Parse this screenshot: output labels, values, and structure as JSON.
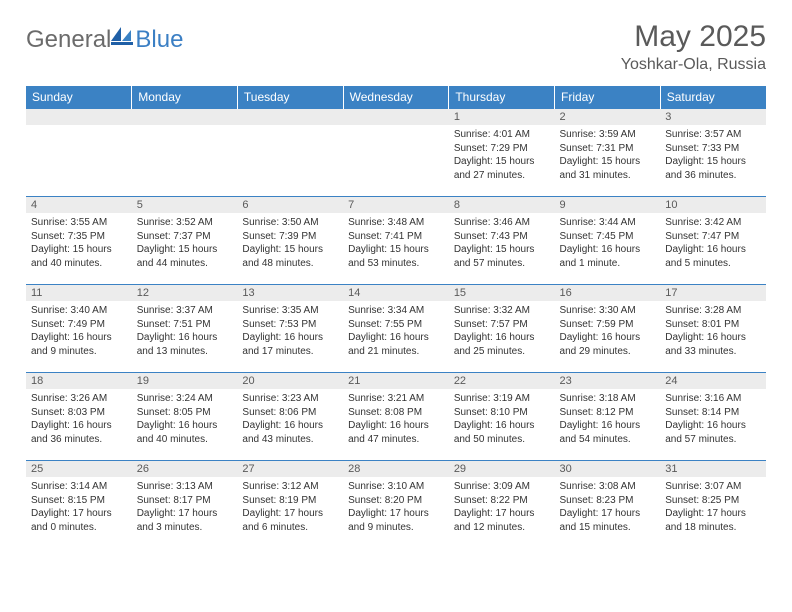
{
  "logo": {
    "text1": "General",
    "text2": "Blue"
  },
  "title": "May 2025",
  "location": "Yoshkar-Ola, Russia",
  "colors": {
    "header_bg": "#3b82c4",
    "header_text": "#ffffff",
    "daynum_bg": "#ececec",
    "border": "#3b82c4",
    "text": "#333333",
    "title_text": "#5a5a5a"
  },
  "weekdays": [
    "Sunday",
    "Monday",
    "Tuesday",
    "Wednesday",
    "Thursday",
    "Friday",
    "Saturday"
  ],
  "weeks": [
    [
      {
        "day": "",
        "lines": []
      },
      {
        "day": "",
        "lines": []
      },
      {
        "day": "",
        "lines": []
      },
      {
        "day": "",
        "lines": []
      },
      {
        "day": "1",
        "lines": [
          "Sunrise: 4:01 AM",
          "Sunset: 7:29 PM",
          "Daylight: 15 hours",
          "and 27 minutes."
        ]
      },
      {
        "day": "2",
        "lines": [
          "Sunrise: 3:59 AM",
          "Sunset: 7:31 PM",
          "Daylight: 15 hours",
          "and 31 minutes."
        ]
      },
      {
        "day": "3",
        "lines": [
          "Sunrise: 3:57 AM",
          "Sunset: 7:33 PM",
          "Daylight: 15 hours",
          "and 36 minutes."
        ]
      }
    ],
    [
      {
        "day": "4",
        "lines": [
          "Sunrise: 3:55 AM",
          "Sunset: 7:35 PM",
          "Daylight: 15 hours",
          "and 40 minutes."
        ]
      },
      {
        "day": "5",
        "lines": [
          "Sunrise: 3:52 AM",
          "Sunset: 7:37 PM",
          "Daylight: 15 hours",
          "and 44 minutes."
        ]
      },
      {
        "day": "6",
        "lines": [
          "Sunrise: 3:50 AM",
          "Sunset: 7:39 PM",
          "Daylight: 15 hours",
          "and 48 minutes."
        ]
      },
      {
        "day": "7",
        "lines": [
          "Sunrise: 3:48 AM",
          "Sunset: 7:41 PM",
          "Daylight: 15 hours",
          "and 53 minutes."
        ]
      },
      {
        "day": "8",
        "lines": [
          "Sunrise: 3:46 AM",
          "Sunset: 7:43 PM",
          "Daylight: 15 hours",
          "and 57 minutes."
        ]
      },
      {
        "day": "9",
        "lines": [
          "Sunrise: 3:44 AM",
          "Sunset: 7:45 PM",
          "Daylight: 16 hours",
          "and 1 minute."
        ]
      },
      {
        "day": "10",
        "lines": [
          "Sunrise: 3:42 AM",
          "Sunset: 7:47 PM",
          "Daylight: 16 hours",
          "and 5 minutes."
        ]
      }
    ],
    [
      {
        "day": "11",
        "lines": [
          "Sunrise: 3:40 AM",
          "Sunset: 7:49 PM",
          "Daylight: 16 hours",
          "and 9 minutes."
        ]
      },
      {
        "day": "12",
        "lines": [
          "Sunrise: 3:37 AM",
          "Sunset: 7:51 PM",
          "Daylight: 16 hours",
          "and 13 minutes."
        ]
      },
      {
        "day": "13",
        "lines": [
          "Sunrise: 3:35 AM",
          "Sunset: 7:53 PM",
          "Daylight: 16 hours",
          "and 17 minutes."
        ]
      },
      {
        "day": "14",
        "lines": [
          "Sunrise: 3:34 AM",
          "Sunset: 7:55 PM",
          "Daylight: 16 hours",
          "and 21 minutes."
        ]
      },
      {
        "day": "15",
        "lines": [
          "Sunrise: 3:32 AM",
          "Sunset: 7:57 PM",
          "Daylight: 16 hours",
          "and 25 minutes."
        ]
      },
      {
        "day": "16",
        "lines": [
          "Sunrise: 3:30 AM",
          "Sunset: 7:59 PM",
          "Daylight: 16 hours",
          "and 29 minutes."
        ]
      },
      {
        "day": "17",
        "lines": [
          "Sunrise: 3:28 AM",
          "Sunset: 8:01 PM",
          "Daylight: 16 hours",
          "and 33 minutes."
        ]
      }
    ],
    [
      {
        "day": "18",
        "lines": [
          "Sunrise: 3:26 AM",
          "Sunset: 8:03 PM",
          "Daylight: 16 hours",
          "and 36 minutes."
        ]
      },
      {
        "day": "19",
        "lines": [
          "Sunrise: 3:24 AM",
          "Sunset: 8:05 PM",
          "Daylight: 16 hours",
          "and 40 minutes."
        ]
      },
      {
        "day": "20",
        "lines": [
          "Sunrise: 3:23 AM",
          "Sunset: 8:06 PM",
          "Daylight: 16 hours",
          "and 43 minutes."
        ]
      },
      {
        "day": "21",
        "lines": [
          "Sunrise: 3:21 AM",
          "Sunset: 8:08 PM",
          "Daylight: 16 hours",
          "and 47 minutes."
        ]
      },
      {
        "day": "22",
        "lines": [
          "Sunrise: 3:19 AM",
          "Sunset: 8:10 PM",
          "Daylight: 16 hours",
          "and 50 minutes."
        ]
      },
      {
        "day": "23",
        "lines": [
          "Sunrise: 3:18 AM",
          "Sunset: 8:12 PM",
          "Daylight: 16 hours",
          "and 54 minutes."
        ]
      },
      {
        "day": "24",
        "lines": [
          "Sunrise: 3:16 AM",
          "Sunset: 8:14 PM",
          "Daylight: 16 hours",
          "and 57 minutes."
        ]
      }
    ],
    [
      {
        "day": "25",
        "lines": [
          "Sunrise: 3:14 AM",
          "Sunset: 8:15 PM",
          "Daylight: 17 hours",
          "and 0 minutes."
        ]
      },
      {
        "day": "26",
        "lines": [
          "Sunrise: 3:13 AM",
          "Sunset: 8:17 PM",
          "Daylight: 17 hours",
          "and 3 minutes."
        ]
      },
      {
        "day": "27",
        "lines": [
          "Sunrise: 3:12 AM",
          "Sunset: 8:19 PM",
          "Daylight: 17 hours",
          "and 6 minutes."
        ]
      },
      {
        "day": "28",
        "lines": [
          "Sunrise: 3:10 AM",
          "Sunset: 8:20 PM",
          "Daylight: 17 hours",
          "and 9 minutes."
        ]
      },
      {
        "day": "29",
        "lines": [
          "Sunrise: 3:09 AM",
          "Sunset: 8:22 PM",
          "Daylight: 17 hours",
          "and 12 minutes."
        ]
      },
      {
        "day": "30",
        "lines": [
          "Sunrise: 3:08 AM",
          "Sunset: 8:23 PM",
          "Daylight: 17 hours",
          "and 15 minutes."
        ]
      },
      {
        "day": "31",
        "lines": [
          "Sunrise: 3:07 AM",
          "Sunset: 8:25 PM",
          "Daylight: 17 hours",
          "and 18 minutes."
        ]
      }
    ]
  ]
}
